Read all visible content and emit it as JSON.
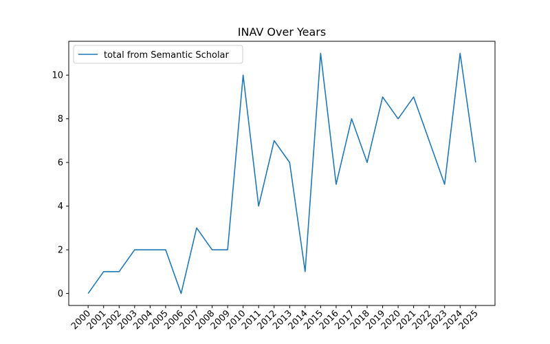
{
  "chart_data": {
    "type": "line",
    "title": "INAV Over Years",
    "xlabel": "",
    "ylabel": "",
    "categories": [
      "2000",
      "2001",
      "2002",
      "2003",
      "2004",
      "2005",
      "2006",
      "2007",
      "2008",
      "2009",
      "2010",
      "2011",
      "2012",
      "2013",
      "2014",
      "2015",
      "2016",
      "2017",
      "2018",
      "2019",
      "2020",
      "2021",
      "2022",
      "2023",
      "2024",
      "2025"
    ],
    "series": [
      {
        "name": "total from Semantic Scholar",
        "color": "#1f77b4",
        "values": [
          0,
          1,
          1,
          2,
          2,
          2,
          0,
          3,
          2,
          2,
          10,
          4,
          7,
          6,
          1,
          11,
          5,
          8,
          6,
          9,
          8,
          9,
          7,
          5,
          11,
          6
        ]
      }
    ],
    "yticks": [
      0,
      2,
      4,
      6,
      8,
      10
    ],
    "ylim": [
      -0.55,
      11.55
    ],
    "legend_position": "upper-left",
    "grid": false
  }
}
